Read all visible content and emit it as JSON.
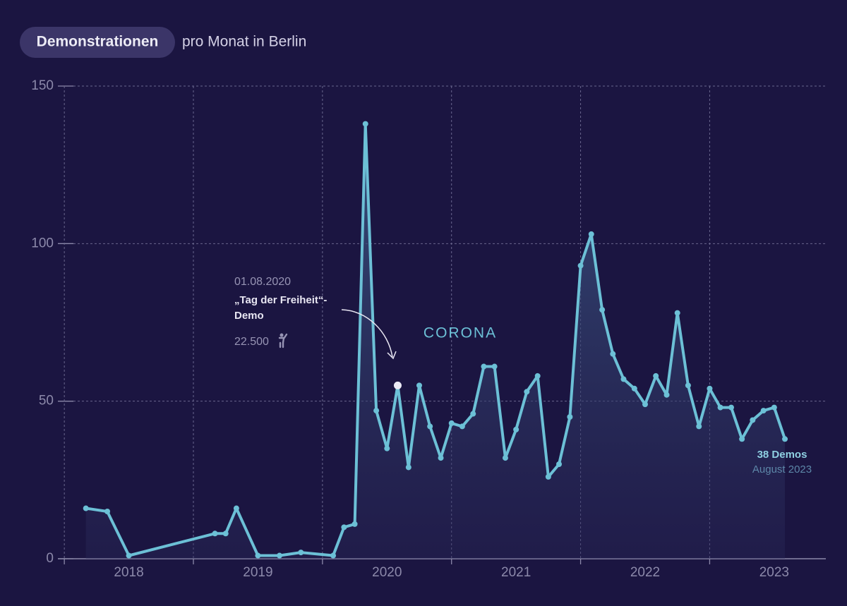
{
  "chart_data": {
    "type": "line",
    "title": "Demonstrationen",
    "subtitle": "pro Monat in Berlin",
    "x": [
      2018.167,
      2018.333,
      2018.5,
      2019.167,
      2019.25,
      2019.333,
      2019.5,
      2019.667,
      2019.833,
      2020.083,
      2020.167,
      2020.25,
      2020.333,
      2020.417,
      2020.5,
      2020.583,
      2020.667,
      2020.75,
      2020.833,
      2020.917,
      2021.0,
      2021.083,
      2021.167,
      2021.25,
      2021.333,
      2021.417,
      2021.5,
      2021.583,
      2021.667,
      2021.75,
      2021.833,
      2021.917,
      2022.0,
      2022.083,
      2022.167,
      2022.25,
      2022.333,
      2022.417,
      2022.5,
      2022.583,
      2022.667,
      2022.75,
      2022.833,
      2022.917,
      2023.0,
      2023.083,
      2023.167,
      2023.25,
      2023.333,
      2023.417,
      2023.5,
      2023.583
    ],
    "series": [
      {
        "name": "Demonstrationen",
        "color": "#6cc0d6",
        "values": [
          16,
          15,
          1,
          8,
          8,
          16,
          1,
          1,
          2,
          1,
          10,
          11,
          138,
          47,
          35,
          55,
          29,
          55,
          42,
          32,
          43,
          42,
          46,
          61,
          61,
          32,
          41,
          53,
          58,
          26,
          30,
          45,
          93,
          103,
          79,
          65,
          57,
          54,
          49,
          58,
          52,
          78,
          55,
          42,
          54,
          48,
          48,
          38,
          44,
          47,
          48,
          38
        ]
      }
    ],
    "xlim": [
      2017.95,
      2023.9
    ],
    "xticks": [
      {
        "value": 2018.5,
        "label": "2018"
      },
      {
        "value": 2019.5,
        "label": "2019"
      },
      {
        "value": 2020.5,
        "label": "2020"
      },
      {
        "value": 2021.5,
        "label": "2021"
      },
      {
        "value": 2022.5,
        "label": "2022"
      },
      {
        "value": 2023.5,
        "label": "2023"
      }
    ],
    "xgrid": [
      2018,
      2019,
      2020,
      2021,
      2022,
      2023
    ],
    "ylim": [
      0,
      150
    ],
    "yticks": [
      0,
      50,
      100,
      150
    ],
    "grid": true,
    "annotations": {
      "event_date": "01.08.2020",
      "event_name_1": "„Tag der Freiheit“-",
      "event_name_2": "Demo",
      "event_participants": "22.500",
      "highlight_point": 15,
      "period": "CORONA",
      "end_value_label": "38 Demos",
      "end_date": "August 2023"
    }
  }
}
